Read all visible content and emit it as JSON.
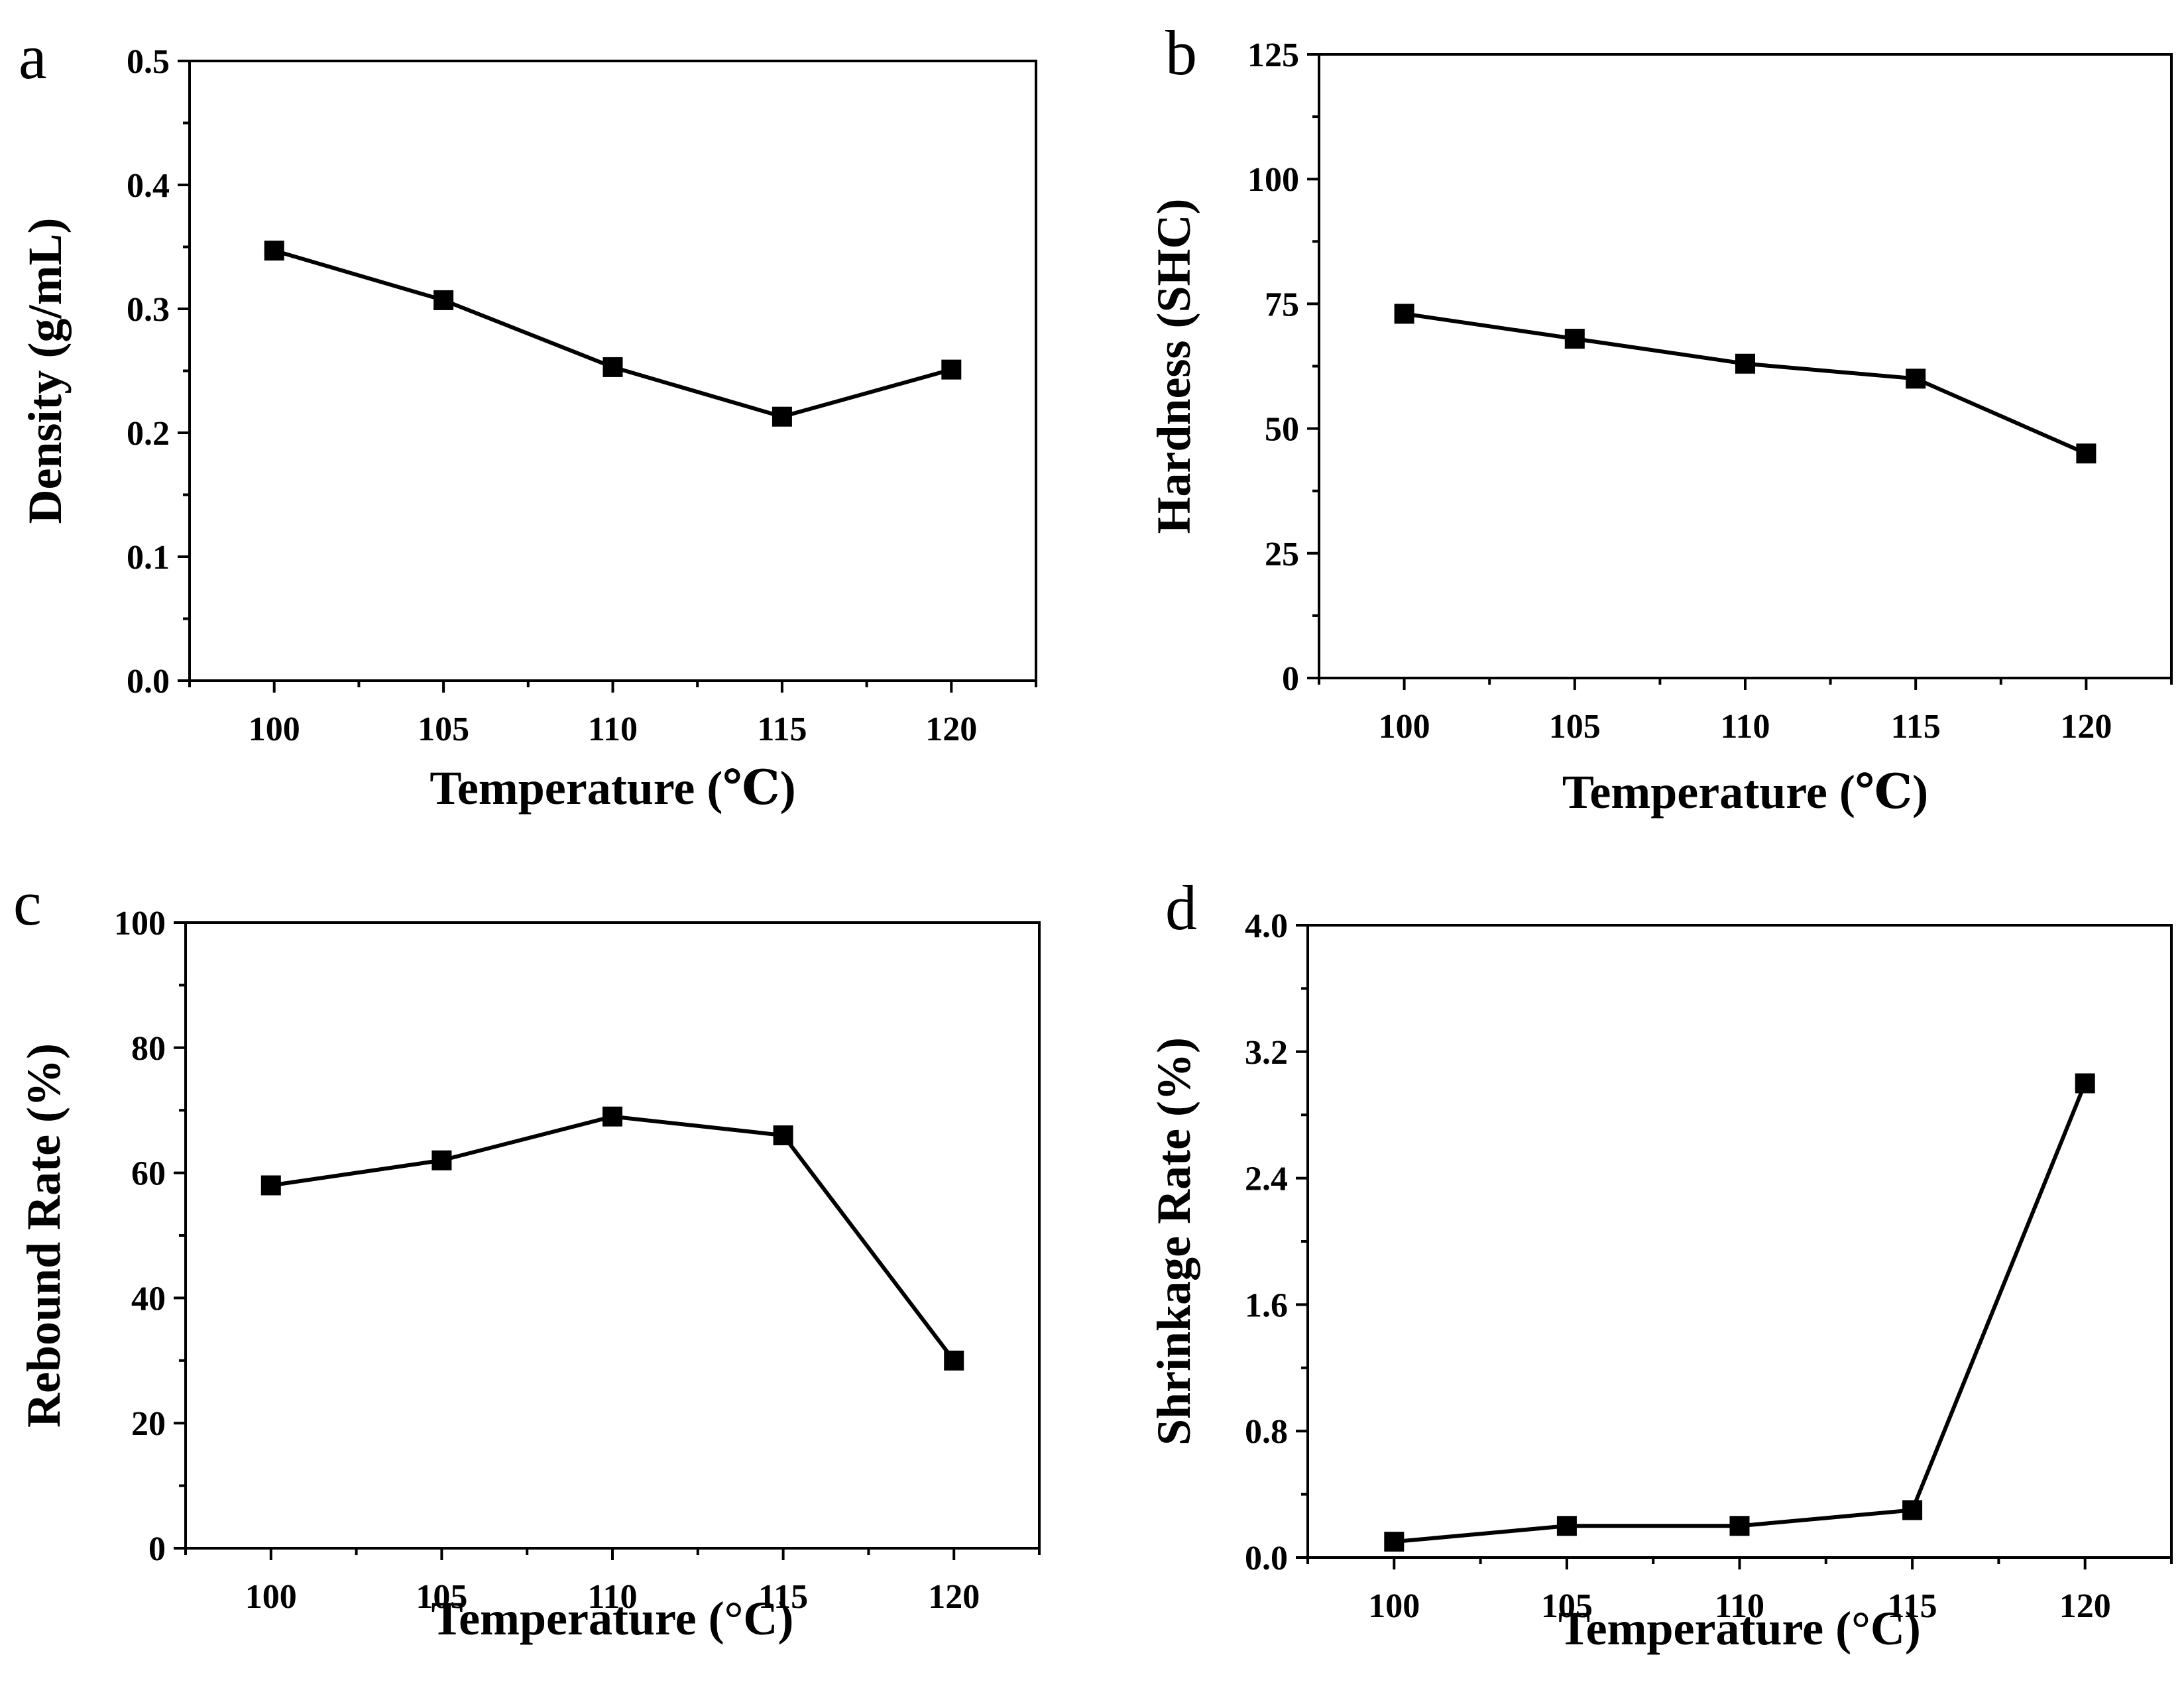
{
  "chart_data": [
    {
      "id": "a",
      "panel_label": "a",
      "type": "line",
      "x": [
        100,
        105,
        110,
        115,
        120
      ],
      "values": [
        0.347,
        0.307,
        0.253,
        0.213,
        0.251
      ],
      "xlim": [
        97.5,
        122.5
      ],
      "ylim": [
        0.0,
        0.5
      ],
      "xticks": [
        "100",
        "105",
        "110",
        "115",
        "120"
      ],
      "yticks": [
        "0.0",
        "0.1",
        "0.2",
        "0.3",
        "0.4",
        "0.5"
      ],
      "xlabel": "Temperature (℃)",
      "ylabel": "Density (g/mL)"
    },
    {
      "id": "b",
      "panel_label": "b",
      "type": "line",
      "x": [
        100,
        105,
        110,
        115,
        120
      ],
      "values": [
        73,
        68,
        63,
        60,
        45
      ],
      "xlim": [
        97.5,
        122.5
      ],
      "ylim": [
        0,
        125
      ],
      "xticks": [
        "100",
        "105",
        "110",
        "115",
        "120"
      ],
      "yticks": [
        "0",
        "25",
        "50",
        "75",
        "100",
        "125"
      ],
      "xlabel": "Temperature (℃)",
      "ylabel": "Hardness (SHC)"
    },
    {
      "id": "c",
      "panel_label": "c",
      "type": "line",
      "x": [
        100,
        105,
        110,
        115,
        120
      ],
      "values": [
        58,
        62,
        69,
        66,
        30
      ],
      "xlim": [
        97.5,
        122.5
      ],
      "ylim": [
        0,
        100
      ],
      "xticks": [
        "100",
        "105",
        "110",
        "115",
        "120"
      ],
      "yticks": [
        "0",
        "20",
        "40",
        "60",
        "80",
        "100"
      ],
      "xlabel": "Temperature (°C)",
      "ylabel": "Rebound Rate (%)"
    },
    {
      "id": "d",
      "panel_label": "d",
      "type": "line",
      "x": [
        100,
        105,
        110,
        115,
        120
      ],
      "values": [
        0.1,
        0.2,
        0.2,
        0.3,
        3.0
      ],
      "xlim": [
        97.5,
        122.5
      ],
      "ylim": [
        0.0,
        4.0
      ],
      "xticks": [
        "100",
        "105",
        "110",
        "115",
        "120"
      ],
      "yticks": [
        "0.0",
        "0.8",
        "1.6",
        "2.4",
        "3.2",
        "4.0"
      ],
      "xlabel": "Temperature (°C)",
      "ylabel": "Shrinkage Rate (%)"
    }
  ]
}
